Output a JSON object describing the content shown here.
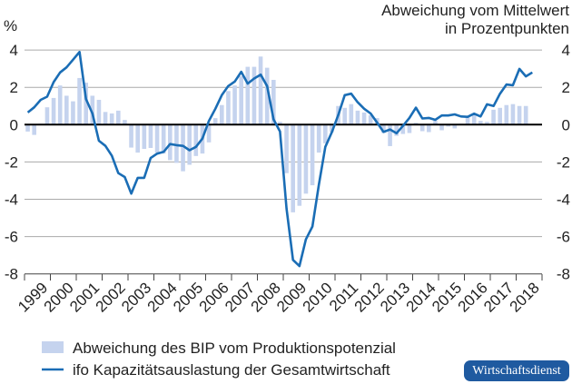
{
  "chart_data": {
    "type": "bar+line",
    "unit_label": "%",
    "right_axis_title": [
      "Abweichung vom Mittelwert",
      "in Prozentpunkten"
    ],
    "ylim": [
      -8,
      4
    ],
    "yticks": [
      4,
      2,
      0,
      -2,
      -4,
      -6,
      -8
    ],
    "ytick_labels": [
      "4",
      "2",
      "0",
      "-2",
      "-4",
      "-6",
      "-8"
    ],
    "grid": true,
    "x_frequency": "quarterly",
    "x_start": "1999Q1",
    "years": [
      "1999",
      "2000",
      "2001",
      "2002",
      "2003",
      "2004",
      "2005",
      "2006",
      "2007",
      "2008",
      "2009",
      "2010",
      "2011",
      "2012",
      "2013",
      "2014",
      "2015",
      "2016",
      "2017",
      "2018"
    ],
    "legend_placement": "bottom",
    "series": [
      {
        "name": "Abweichung des BIP vom Produktionspotenzial",
        "kind": "bar",
        "color": "#c5d3ee",
        "values": [
          -0.37,
          -0.55,
          0.05,
          0.93,
          1.43,
          2.1,
          1.55,
          1.25,
          2.5,
          2.25,
          1.55,
          1.33,
          0.68,
          0.6,
          0.75,
          0.25,
          -1.23,
          -1.5,
          -1.3,
          -1.25,
          -1.5,
          -1.55,
          -1.9,
          -2.05,
          -2.5,
          -2.15,
          -1.68,
          -1.55,
          -0.95,
          0.35,
          1.05,
          1.8,
          2.1,
          2.6,
          3.1,
          3.1,
          3.65,
          3.05,
          2.4,
          0.15,
          -2.6,
          -4.7,
          -4.35,
          -3.7,
          -3.25,
          -1.5,
          -1.0,
          -0.4,
          1.0,
          0.9,
          1.1,
          0.75,
          0.65,
          0.5,
          0.35,
          -0.45,
          -1.15,
          -0.6,
          -0.5,
          -0.45,
          0.1,
          -0.35,
          -0.4,
          0.2,
          -0.3,
          -0.1,
          -0.2,
          0.05,
          0.45,
          0.5,
          0.2,
          0.15,
          0.8,
          0.9,
          1.05,
          1.1,
          1.0,
          1.0
        ]
      },
      {
        "name": "ifo Kapazitätsauslastung der Gesamtwirtschaft",
        "kind": "line",
        "color": "#1a6db5",
        "values": [
          0.65,
          0.93,
          1.33,
          1.5,
          2.28,
          2.8,
          3.07,
          3.48,
          3.9,
          1.37,
          0.6,
          -0.86,
          -1.14,
          -1.67,
          -2.6,
          -2.81,
          -3.7,
          -2.85,
          -2.85,
          -1.79,
          -1.55,
          -1.46,
          -1.04,
          -1.1,
          -1.14,
          -1.37,
          -1.19,
          -0.75,
          0.2,
          0.85,
          1.58,
          2.07,
          2.31,
          2.83,
          2.2,
          2.47,
          2.68,
          2.07,
          0.28,
          -0.37,
          -4.5,
          -7.25,
          -7.58,
          -6.15,
          -5.46,
          -3.22,
          -1.19,
          -0.42,
          0.52,
          1.58,
          1.66,
          1.2,
          0.85,
          0.6,
          0.11,
          -0.39,
          -0.26,
          -0.46,
          -0.07,
          0.36,
          0.91,
          0.33,
          0.36,
          0.26,
          0.49,
          0.49,
          0.55,
          0.44,
          0.42,
          0.59,
          0.44,
          1.09,
          1.0,
          1.66,
          2.15,
          2.11,
          2.99,
          2.59,
          2.8
        ]
      }
    ]
  },
  "logo": {
    "text": "Wirtschaftsdienst",
    "color": "#1f5aa0"
  }
}
